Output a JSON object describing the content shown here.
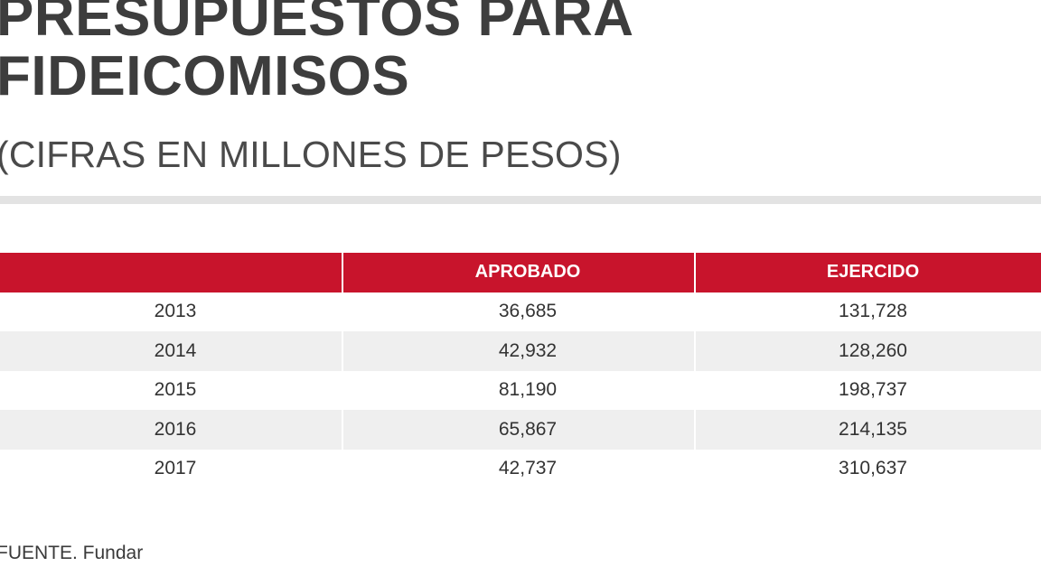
{
  "title_line1": "PRESUPUESTOS PARA",
  "title_line2": "FIDEICOMISOS",
  "subtitle": "(CIFRAS EN MILLONES DE PESOS)",
  "source": "FUENTE. Fundar",
  "colors": {
    "header_bg": "#c8142c",
    "stripe": "#efefef",
    "divider": "#e3e3e3"
  },
  "chart_data": {
    "type": "table",
    "columns": [
      "",
      "APROBADO",
      "EJERCIDO"
    ],
    "rows": [
      {
        "year": "2013",
        "aprobado": "36,685",
        "ejercido": "131,728"
      },
      {
        "year": "2014",
        "aprobado": "42,932",
        "ejercido": "128,260"
      },
      {
        "year": "2015",
        "aprobado": "81,190",
        "ejercido": "198,737"
      },
      {
        "year": "2016",
        "aprobado": "65,867",
        "ejercido": "214,135"
      },
      {
        "year": "2017",
        "aprobado": "42,737",
        "ejercido": "310,637"
      }
    ]
  }
}
